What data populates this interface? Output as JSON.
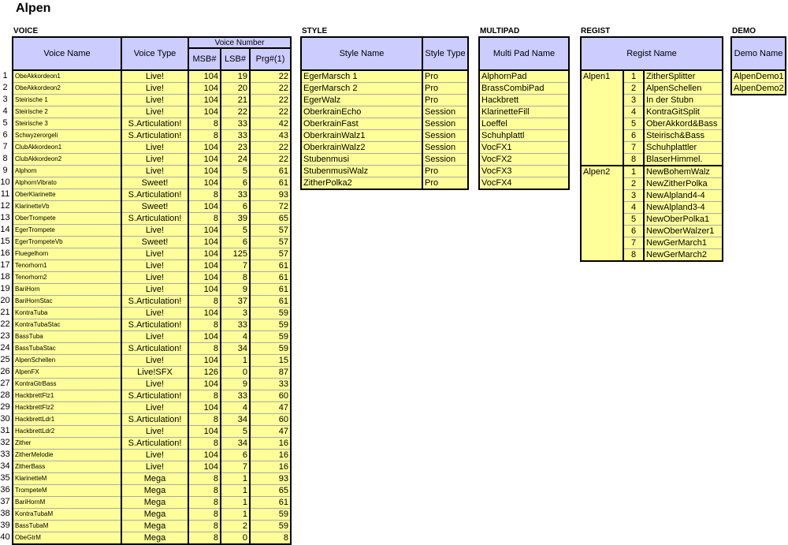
{
  "title": "Alpen",
  "voice": {
    "section_label": "VOICE",
    "headers": {
      "name": "Voice Name",
      "type": "Voice Type",
      "number_group": "Voice Number",
      "msb": "MSB#",
      "lsb": "LSB#",
      "prg": "Prg#(1)"
    },
    "rows": [
      [
        "1",
        "ObeAkkordeon1",
        "Live!",
        "104",
        "19",
        "22"
      ],
      [
        "2",
        "ObeAkkordeon2",
        "Live!",
        "104",
        "20",
        "22"
      ],
      [
        "3",
        "Steirische 1",
        "Live!",
        "104",
        "21",
        "22"
      ],
      [
        "4",
        "Steirische 2",
        "Live!",
        "104",
        "22",
        "22"
      ],
      [
        "5",
        "Steirische 3",
        "S.Articulation!",
        "8",
        "33",
        "42"
      ],
      [
        "6",
        "Schwyzerorgeli",
        "S.Articulation!",
        "8",
        "33",
        "43"
      ],
      [
        "7",
        "ClubAkkordeon1",
        "Live!",
        "104",
        "23",
        "22"
      ],
      [
        "8",
        "ClubAkkordeon2",
        "Live!",
        "104",
        "24",
        "22"
      ],
      [
        "9",
        "Alphorn",
        "Live!",
        "104",
        "5",
        "61"
      ],
      [
        "10",
        "AlphornVibrato",
        "Sweet!",
        "104",
        "6",
        "61"
      ],
      [
        "11",
        "OberKlarinette",
        "S.Articulation!",
        "8",
        "33",
        "93"
      ],
      [
        "12",
        "KlarinetteVb",
        "Sweet!",
        "104",
        "6",
        "72"
      ],
      [
        "13",
        "OberTrompete",
        "S.Articulation!",
        "8",
        "39",
        "65"
      ],
      [
        "14",
        "EgerTrompete",
        "Live!",
        "104",
        "5",
        "57"
      ],
      [
        "15",
        "EgerTrompeteVb",
        "Sweet!",
        "104",
        "6",
        "57"
      ],
      [
        "16",
        "Fluegelhorn",
        "Live!",
        "104",
        "125",
        "57"
      ],
      [
        "17",
        "Tenorhorn1",
        "Live!",
        "104",
        "7",
        "61"
      ],
      [
        "18",
        "Tenorhorn2",
        "Live!",
        "104",
        "8",
        "61"
      ],
      [
        "19",
        "BariHorn",
        "Live!",
        "104",
        "9",
        "61"
      ],
      [
        "20",
        "BariHornStac",
        "S.Articulation!",
        "8",
        "37",
        "61"
      ],
      [
        "21",
        "KontraTuba",
        "Live!",
        "104",
        "3",
        "59"
      ],
      [
        "22",
        "KontraTubaStac",
        "S.Articulation!",
        "8",
        "33",
        "59"
      ],
      [
        "23",
        "BassTuba",
        "Live!",
        "104",
        "4",
        "59"
      ],
      [
        "24",
        "BassTubaStac",
        "S.Articulation!",
        "8",
        "34",
        "59"
      ],
      [
        "25",
        "AlpenSchellen",
        "Live!",
        "104",
        "1",
        "15"
      ],
      [
        "26",
        "AlpenFX",
        "Live!SFX",
        "126",
        "0",
        "87"
      ],
      [
        "27",
        "KontraGtrBass",
        "Live!",
        "104",
        "9",
        "33"
      ],
      [
        "28",
        "HackbrettFlz1",
        "S.Articulation!",
        "8",
        "33",
        "60"
      ],
      [
        "29",
        "HackbrettFlz2",
        "Live!",
        "104",
        "4",
        "47"
      ],
      [
        "30",
        "HackbrettLdr1",
        "S.Articulation!",
        "8",
        "34",
        "60"
      ],
      [
        "31",
        "HackbrettLdr2",
        "Live!",
        "104",
        "5",
        "47"
      ],
      [
        "32",
        "Zither",
        "S.Articulation!",
        "8",
        "34",
        "16"
      ],
      [
        "33",
        "ZitherMelodie",
        "Live!",
        "104",
        "6",
        "16"
      ],
      [
        "34",
        "ZitherBass",
        "Live!",
        "104",
        "7",
        "16"
      ],
      [
        "35",
        "KlarinetteM",
        "Mega",
        "8",
        "1",
        "93"
      ],
      [
        "36",
        "TrompeteM",
        "Mega",
        "8",
        "1",
        "65"
      ],
      [
        "37",
        "BariHornM",
        "Mega",
        "8",
        "1",
        "61"
      ],
      [
        "38",
        "KontraTubaM",
        "Mega",
        "8",
        "1",
        "59"
      ],
      [
        "39",
        "BassTubaM",
        "Mega",
        "8",
        "2",
        "59"
      ],
      [
        "40",
        "ObeGtrM",
        "Mega",
        "8",
        "0",
        "8"
      ]
    ]
  },
  "style": {
    "section_label": "STYLE",
    "headers": {
      "name": "Style Name",
      "type": "Style Type"
    },
    "rows": [
      [
        "EgerMarsch 1",
        "Pro"
      ],
      [
        "EgerMarsch 2",
        "Pro"
      ],
      [
        "EgerWalz",
        "Pro"
      ],
      [
        "OberkrainEcho",
        "Session"
      ],
      [
        "OberkrainFast",
        "Session"
      ],
      [
        "OberkrainWalz1",
        "Session"
      ],
      [
        "OberkrainWalz2",
        "Session"
      ],
      [
        "Stubenmusi",
        "Session"
      ],
      [
        "StubenmusiWalz",
        "Pro"
      ],
      [
        "ZitherPolka2",
        "Pro"
      ]
    ]
  },
  "multipad": {
    "section_label": "MULTIPAD",
    "headers": {
      "name": "Multi Pad Name"
    },
    "rows": [
      "AlphornPad",
      "BrassCombiPad",
      "Hackbrett",
      "KlarinetteFill",
      "Loeffel",
      "Schuhplattl",
      "VocFX1",
      "VocFX2",
      "VocFX3",
      "VocFX4"
    ]
  },
  "regist": {
    "section_label": "REGIST",
    "headers": {
      "name": "Regist Name"
    },
    "groups": [
      {
        "bank": "Alpen1",
        "items": [
          "ZitherSplitter",
          "AlpenSchellen",
          "In der Stubn",
          "KontraGitSplit",
          "OberAkkord&Bass",
          "Steirisch&Bass",
          "Schuhplattler",
          "BlaserHimmel."
        ]
      },
      {
        "bank": "Alpen2",
        "items": [
          "NewBohemWalz",
          "NewZitherPolka",
          "NewAlpland4-4",
          "NewAlpland3-4",
          "NewOberPolka1",
          "NewOberWalzer1",
          "NewGerMarch1",
          "NewGerMarch2"
        ]
      }
    ]
  },
  "demo": {
    "section_label": "DEMO",
    "headers": {
      "name": "Demo Name"
    },
    "rows": [
      "AlpenDemo1",
      "AlpenDemo2"
    ]
  },
  "colors": {
    "header_bg": "#ccccff",
    "cell_bg": "#ffff99"
  }
}
